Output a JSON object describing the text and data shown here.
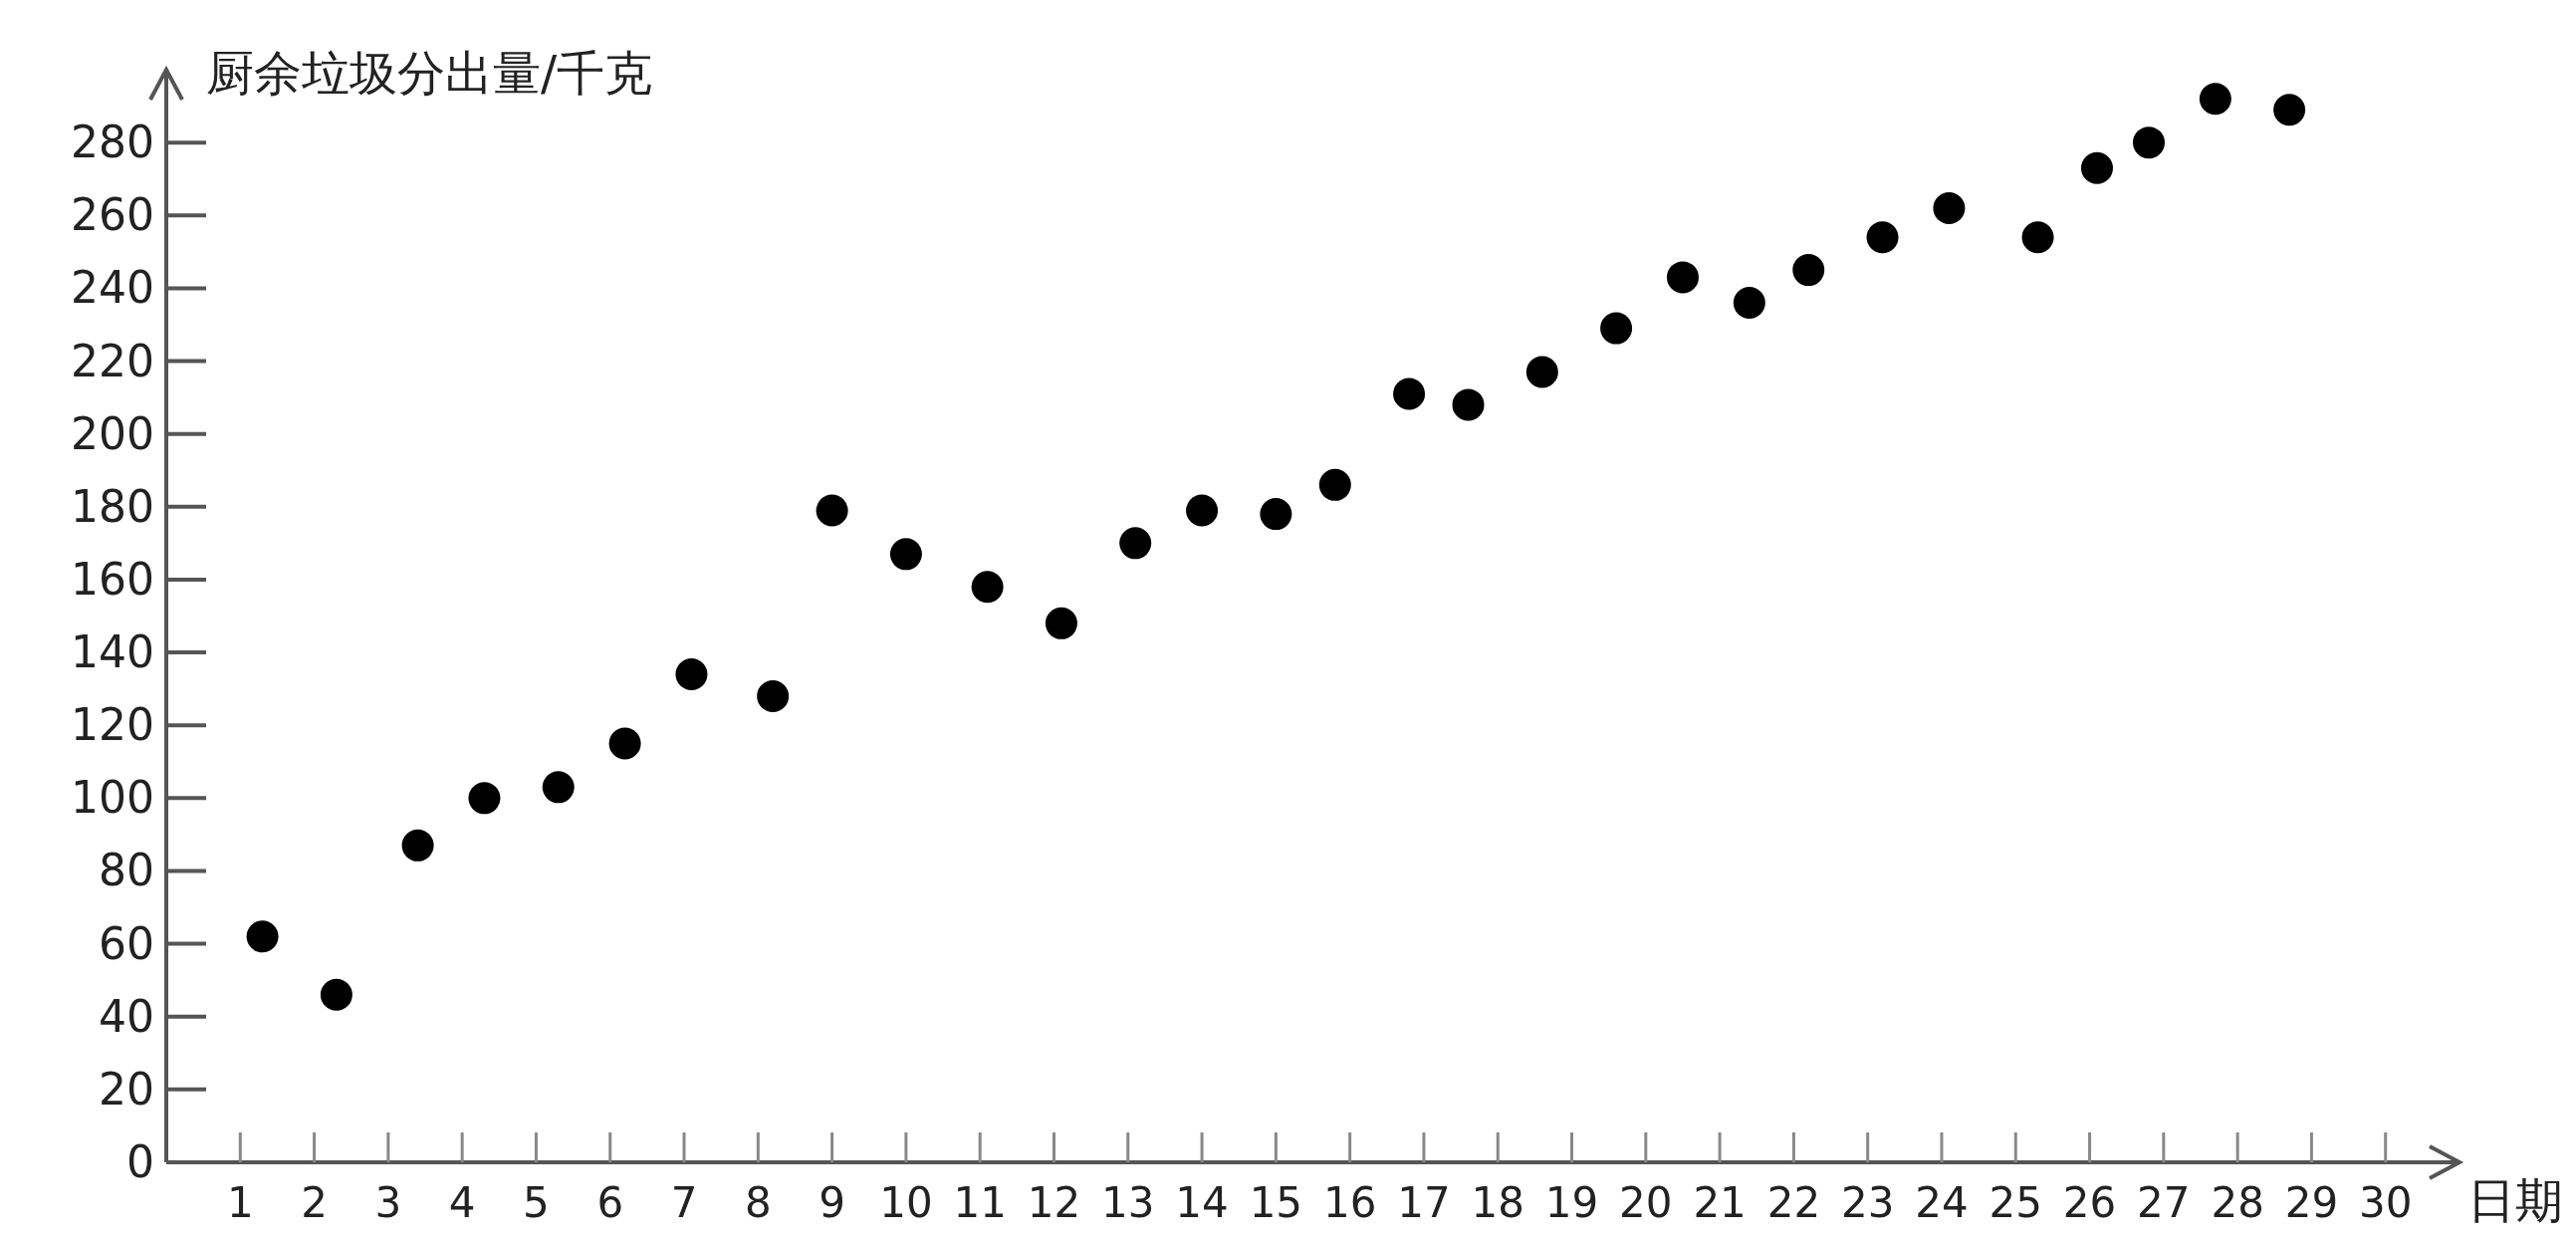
{
  "chart_data": {
    "type": "scatter",
    "xlabel": "日期",
    "ylabel": "厨余垃圾分出量/千克",
    "x": [
      1.3,
      2.3,
      3.4,
      4.3,
      5.3,
      6.2,
      7.1,
      8.2,
      9.0,
      10.0,
      11.1,
      12.1,
      13.1,
      14.0,
      15.0,
      15.8,
      16.8,
      17.6,
      18.6,
      19.6,
      20.5,
      21.4,
      22.2,
      23.2,
      24.1,
      25.3,
      26.1,
      26.8,
      27.7,
      28.7
    ],
    "values": [
      62,
      46,
      87,
      100,
      103,
      115,
      134,
      128,
      179,
      167,
      158,
      148,
      170,
      179,
      178,
      186,
      211,
      208,
      217,
      229,
      243,
      236,
      245,
      254,
      262,
      254,
      273,
      280,
      292,
      289
    ],
    "color": "#000000",
    "marker": "circle",
    "grid": false,
    "xlim": [
      0,
      31
    ],
    "ylim": [
      0,
      300
    ],
    "xticks": [
      1,
      2,
      3,
      4,
      5,
      6,
      7,
      8,
      9,
      10,
      11,
      12,
      13,
      14,
      15,
      16,
      17,
      18,
      19,
      20,
      21,
      22,
      23,
      24,
      25,
      26,
      27,
      28,
      29,
      30
    ],
    "yticks": [
      0,
      20,
      40,
      60,
      80,
      100,
      120,
      140,
      160,
      180,
      200,
      220,
      240,
      260,
      280
    ]
  }
}
